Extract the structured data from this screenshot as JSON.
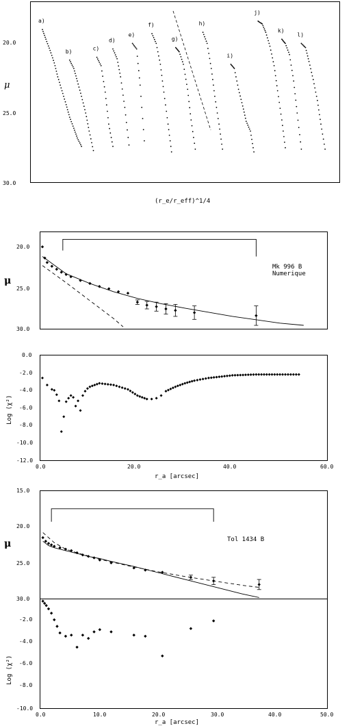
{
  "chart_data": [
    {
      "type": "scatter",
      "xlabel": "(r_e/r_eff)^1/4",
      "ylabel": "μ",
      "ylim": [
        30.0,
        15.0
      ],
      "yticks": [
        "20.0",
        "25.0",
        "30.0"
      ],
      "grid": false,
      "series": [
        {
          "name": "a)",
          "x": [
            0.0,
            0.05,
            0.11,
            0.17,
            0.22,
            0.28,
            0.34,
            0.39,
            0.45,
            0.5,
            0.56
          ],
          "y": [
            19.0,
            19.7,
            20.5,
            21.4,
            22.4,
            23.4,
            24.4,
            25.3,
            26.1,
            26.8,
            27.4
          ]
        },
        {
          "name": "b)",
          "x": [
            0.39,
            0.45,
            0.5,
            0.56,
            0.62,
            0.67,
            0.73
          ],
          "y": [
            21.2,
            21.8,
            22.7,
            23.8,
            25.0,
            26.3,
            27.7
          ]
        },
        {
          "name": "c)",
          "x": [
            0.78,
            0.84,
            0.9,
            0.95,
            1.01
          ],
          "y": [
            21.0,
            21.6,
            23.5,
            25.8,
            27.4
          ]
        },
        {
          "name": "d)",
          "x": [
            1.01,
            1.07,
            1.12,
            1.18,
            1.24
          ],
          "y": [
            20.4,
            21.1,
            22.4,
            24.6,
            27.3
          ]
        },
        {
          "name": "e)",
          "x": [
            1.29,
            1.35,
            1.4,
            1.46
          ],
          "y": [
            20.0,
            20.4,
            23.0,
            27.0
          ]
        },
        {
          "name": "f)",
          "x": [
            1.57,
            1.63,
            1.69,
            1.74,
            1.8,
            1.85
          ],
          "y": [
            19.3,
            20.0,
            21.5,
            23.5,
            25.8,
            27.8
          ]
        },
        {
          "name": "g)",
          "x": [
            1.91,
            1.96,
            2.02,
            2.08,
            2.13,
            2.19
          ],
          "y": [
            20.3,
            20.6,
            21.5,
            23.3,
            25.5,
            27.6
          ]
        },
        {
          "name": "h)",
          "x": [
            2.3,
            2.36,
            2.42,
            2.47,
            2.53,
            2.58
          ],
          "y": [
            19.2,
            20.0,
            21.8,
            23.8,
            25.8,
            27.6
          ]
        },
        {
          "name": "i)",
          "x": [
            2.7,
            2.75,
            2.81,
            2.87,
            2.92,
            2.98,
            3.03
          ],
          "y": [
            21.5,
            21.8,
            23.3,
            24.5,
            25.6,
            26.3,
            27.8
          ]
        },
        {
          "name": "j)",
          "x": [
            3.09,
            3.15,
            3.2,
            3.26,
            3.32,
            3.37,
            3.43,
            3.48
          ],
          "y": [
            18.4,
            18.6,
            19.2,
            20.2,
            21.6,
            23.4,
            25.5,
            27.5
          ]
        },
        {
          "name": "k)",
          "x": [
            3.43,
            3.48,
            3.54,
            3.6,
            3.65,
            3.71
          ],
          "y": [
            19.7,
            20.0,
            20.8,
            22.7,
            25.0,
            27.6
          ]
        },
        {
          "name": "l)",
          "x": [
            3.71,
            3.77,
            3.82,
            3.88,
            3.94,
            3.99,
            4.05
          ],
          "y": [
            20.0,
            20.3,
            21.3,
            22.6,
            24.1,
            25.8,
            27.6
          ]
        }
      ]
    },
    {
      "type": "scatter",
      "title": "Mk 996 B",
      "subtitle": "Numerique",
      "xlabel": "",
      "ylabel": "μ",
      "xlim": [
        -0.5,
        60.0
      ],
      "ylim": [
        30.0,
        17.0
      ],
      "yticks": [
        "20.0",
        "25.0",
        "30.0"
      ],
      "grid": false,
      "series": [
        {
          "name": "",
          "x": [
            0,
            0.5,
            1,
            2,
            3,
            4,
            5,
            6,
            8,
            10,
            12,
            14,
            16,
            18,
            20,
            22,
            24,
            26,
            28,
            32,
            45
          ],
          "y": [
            19.0,
            20.5,
            21.1,
            21.6,
            22.0,
            22.4,
            22.7,
            23.0,
            23.5,
            23.9,
            24.3,
            24.6,
            25.0,
            25.2,
            26.4,
            26.8,
            27.0,
            27.3,
            27.5,
            27.8,
            28.2
          ],
          "yerr": [
            0,
            0,
            0,
            0,
            0,
            0,
            0,
            0,
            0,
            0,
            0,
            0,
            0,
            0,
            0.3,
            0.5,
            0.6,
            0.7,
            0.8,
            0.9,
            1.3
          ]
        },
        {
          "name": "",
          "x": [
            0,
            5,
            10,
            15,
            20,
            25,
            30,
            40,
            50,
            55
          ],
          "y": [
            20.3,
            22.6,
            23.9,
            25.0,
            25.9,
            26.6,
            27.2,
            28.3,
            29.2,
            29.5
          ]
        },
        {
          "name": "",
          "x": [
            0,
            5,
            10,
            15,
            17
          ],
          "y": [
            21.5,
            23.8,
            26.2,
            28.6,
            29.7
          ]
        }
      ],
      "bracket": {
        "x": [
          4.3,
          45.0
        ],
        "y": 18.0
      }
    },
    {
      "type": "scatter",
      "xlabel": "r_a [arcsec]",
      "ylabel": "Log (χ²)",
      "xlim": [
        -0.5,
        60.0
      ],
      "ylim": [
        -12.0,
        0.0
      ],
      "xticks": [
        "0.0",
        "20.0",
        "40.0",
        "60.0"
      ],
      "yticks": [
        "0.0",
        "-2.0",
        "-4.0",
        "-6.0",
        "-8.0",
        "-10.0",
        "-12.0"
      ],
      "grid": false,
      "series": [
        {
          "name": "",
          "x": [
            0,
            1,
            2,
            2.5,
            3,
            3.5,
            4,
            4.5,
            5,
            5.5,
            6,
            6.5,
            7,
            7.5,
            8,
            8.5,
            9,
            9.5,
            10,
            12,
            15,
            18,
            20,
            22,
            23,
            24,
            25,
            26,
            28,
            30,
            32,
            35,
            40,
            45,
            50,
            54
          ],
          "y": [
            -2.6,
            -3.4,
            -3.9,
            -4.0,
            -4.5,
            -5.2,
            -8.7,
            -7.0,
            -5.3,
            -4.9,
            -4.6,
            -4.8,
            -5.8,
            -5.2,
            -6.3,
            -4.6,
            -4.1,
            -3.8,
            -3.6,
            -3.2,
            -3.4,
            -3.9,
            -4.6,
            -5.0,
            -5.0,
            -4.9,
            -4.6,
            -4.1,
            -3.6,
            -3.2,
            -2.9,
            -2.6,
            -2.3,
            -2.2,
            -2.2,
            -2.2
          ]
        }
      ]
    },
    {
      "type": "scatter",
      "title": "Tol 1434 B",
      "xlabel": "",
      "ylabel": "μ",
      "xlim": [
        -0.5,
        50.0
      ],
      "ylim": [
        30.0,
        15.0
      ],
      "yticks": [
        "15.0",
        "20.0",
        "25.0",
        "30.0"
      ],
      "grid": false,
      "series": [
        {
          "name": "",
          "x": [
            0,
            0.5,
            1,
            1.5,
            2,
            3,
            4,
            5,
            6,
            7,
            8,
            9,
            10,
            12,
            16,
            18,
            21,
            26,
            30,
            38
          ],
          "y": [
            21.5,
            22.0,
            22.3,
            22.5,
            22.7,
            22.9,
            23.1,
            23.3,
            23.6,
            23.9,
            24.1,
            24.3,
            24.6,
            25.0,
            25.7,
            26.0,
            26.3,
            27.0,
            27.5,
            28.0
          ],
          "yerr": [
            0,
            0,
            0,
            0,
            0,
            0,
            0,
            0,
            0,
            0,
            0,
            0,
            0,
            0,
            0,
            0,
            0,
            0.3,
            0.5,
            0.7
          ]
        },
        {
          "name": "",
          "x": [
            0,
            1,
            2,
            4,
            6,
            8,
            10,
            12,
            16,
            20,
            25,
            30,
            35,
            38
          ],
          "y": [
            22.0,
            22.6,
            22.9,
            23.3,
            23.7,
            24.1,
            24.4,
            24.8,
            25.5,
            26.3,
            27.3,
            28.3,
            29.3,
            29.8
          ]
        },
        {
          "name": "",
          "x": [
            0,
            2,
            4,
            6,
            10,
            15,
            20,
            25,
            30,
            35,
            38
          ],
          "y": [
            20.8,
            22.2,
            23.1,
            23.6,
            24.5,
            25.4,
            26.2,
            26.9,
            27.5,
            28.1,
            28.4
          ]
        }
      ],
      "bracket": {
        "x": [
          1.5,
          30.0
        ],
        "y": 17.5
      }
    },
    {
      "type": "scatter",
      "xlabel": "r_a [arcsec]",
      "ylabel": "Log (χ²)",
      "xlim": [
        -0.5,
        50.0
      ],
      "ylim": [
        -10.0,
        0.0
      ],
      "xticks": [
        "0.0",
        "10.0",
        "20.0",
        "30.0",
        "40.0",
        "50.0"
      ],
      "yticks": [
        "-2.0",
        "-4.0",
        "-6.0",
        "-8.0",
        "-10.0"
      ],
      "grid": false,
      "series": [
        {
          "name": "",
          "x": [
            0,
            0.3,
            0.6,
            1,
            1.5,
            2,
            2.5,
            3,
            4,
            5,
            6,
            7,
            8,
            9,
            10,
            12,
            16,
            18,
            21,
            26,
            30
          ],
          "y": [
            -0.2,
            -0.4,
            -0.6,
            -0.9,
            -1.3,
            -1.9,
            -2.5,
            -3.1,
            -3.4,
            -3.3,
            -4.4,
            -3.3,
            -3.6,
            -3.0,
            -2.8,
            -3.0,
            -3.3,
            -3.4,
            -5.2,
            -2.7,
            -2.0
          ]
        }
      ]
    }
  ]
}
